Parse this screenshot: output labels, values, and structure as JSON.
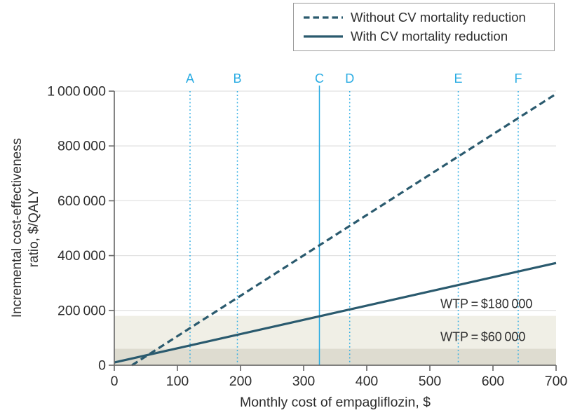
{
  "legend": {
    "items": [
      {
        "label": "Without CV mortality reduction",
        "style": "dashed"
      },
      {
        "label": "With CV mortality reduction",
        "style": "solid"
      }
    ]
  },
  "colors": {
    "series_line": "#2a5a6e",
    "scenario_cyan": "#2aace3",
    "band_light": "#f0efe6",
    "band_dark": "#dedcd0",
    "gridline": "#e2e2e2",
    "axis": "#6e6e6e",
    "text": "#2d2d2d"
  },
  "chart_data": {
    "type": "line",
    "title": "",
    "xlabel": "Monthly cost of empagliflozin, $",
    "ylabel": "Incremental cost-effectiveness ratio, $/QALY",
    "ylabel_lines": [
      "Incremental cost-effectiveness",
      "ratio, $/QALY"
    ],
    "xlim": [
      0,
      700
    ],
    "ylim": [
      0,
      1000000
    ],
    "grid": "horizontal",
    "legend_position": "top-right",
    "x_ticks": [
      {
        "value": 0,
        "label": "0"
      },
      {
        "value": 100,
        "label": "100"
      },
      {
        "value": 200,
        "label": "200"
      },
      {
        "value": 300,
        "label": "300"
      },
      {
        "value": 400,
        "label": "400"
      },
      {
        "value": 500,
        "label": "500"
      },
      {
        "value": 600,
        "label": "600"
      },
      {
        "value": 700,
        "label": "700"
      }
    ],
    "y_ticks": [
      {
        "value": 0,
        "label": "0"
      },
      {
        "value": 200000,
        "label": "200 000"
      },
      {
        "value": 400000,
        "label": "400 000"
      },
      {
        "value": 600000,
        "label": "600 000"
      },
      {
        "value": 800000,
        "label": "800 000"
      },
      {
        "value": 1000000,
        "label": "1 000 000"
      }
    ],
    "series": [
      {
        "name": "Without CV mortality reduction",
        "style": "dashed",
        "points": [
          [
            28,
            0
          ],
          [
            700,
            990000
          ]
        ]
      },
      {
        "name": "With CV mortality reduction",
        "style": "solid",
        "points": [
          [
            0,
            10000
          ],
          [
            700,
            373000
          ]
        ]
      }
    ],
    "scenario_lines": [
      {
        "label": "A",
        "x": 120,
        "line_style": "dotted"
      },
      {
        "label": "B",
        "x": 195,
        "line_style": "dotted"
      },
      {
        "label": "C",
        "x": 325,
        "line_style": "solid"
      },
      {
        "label": "D",
        "x": 373,
        "line_style": "dotted"
      },
      {
        "label": "E",
        "x": 545,
        "line_style": "dotted"
      },
      {
        "label": "F",
        "x": 640,
        "line_style": "dotted"
      }
    ],
    "wtp_bands": [
      {
        "label": "WTP = $180 000",
        "y": 180000,
        "shade": "light"
      },
      {
        "label": "WTP = $60 000",
        "y": 60000,
        "shade": "dark"
      }
    ]
  }
}
